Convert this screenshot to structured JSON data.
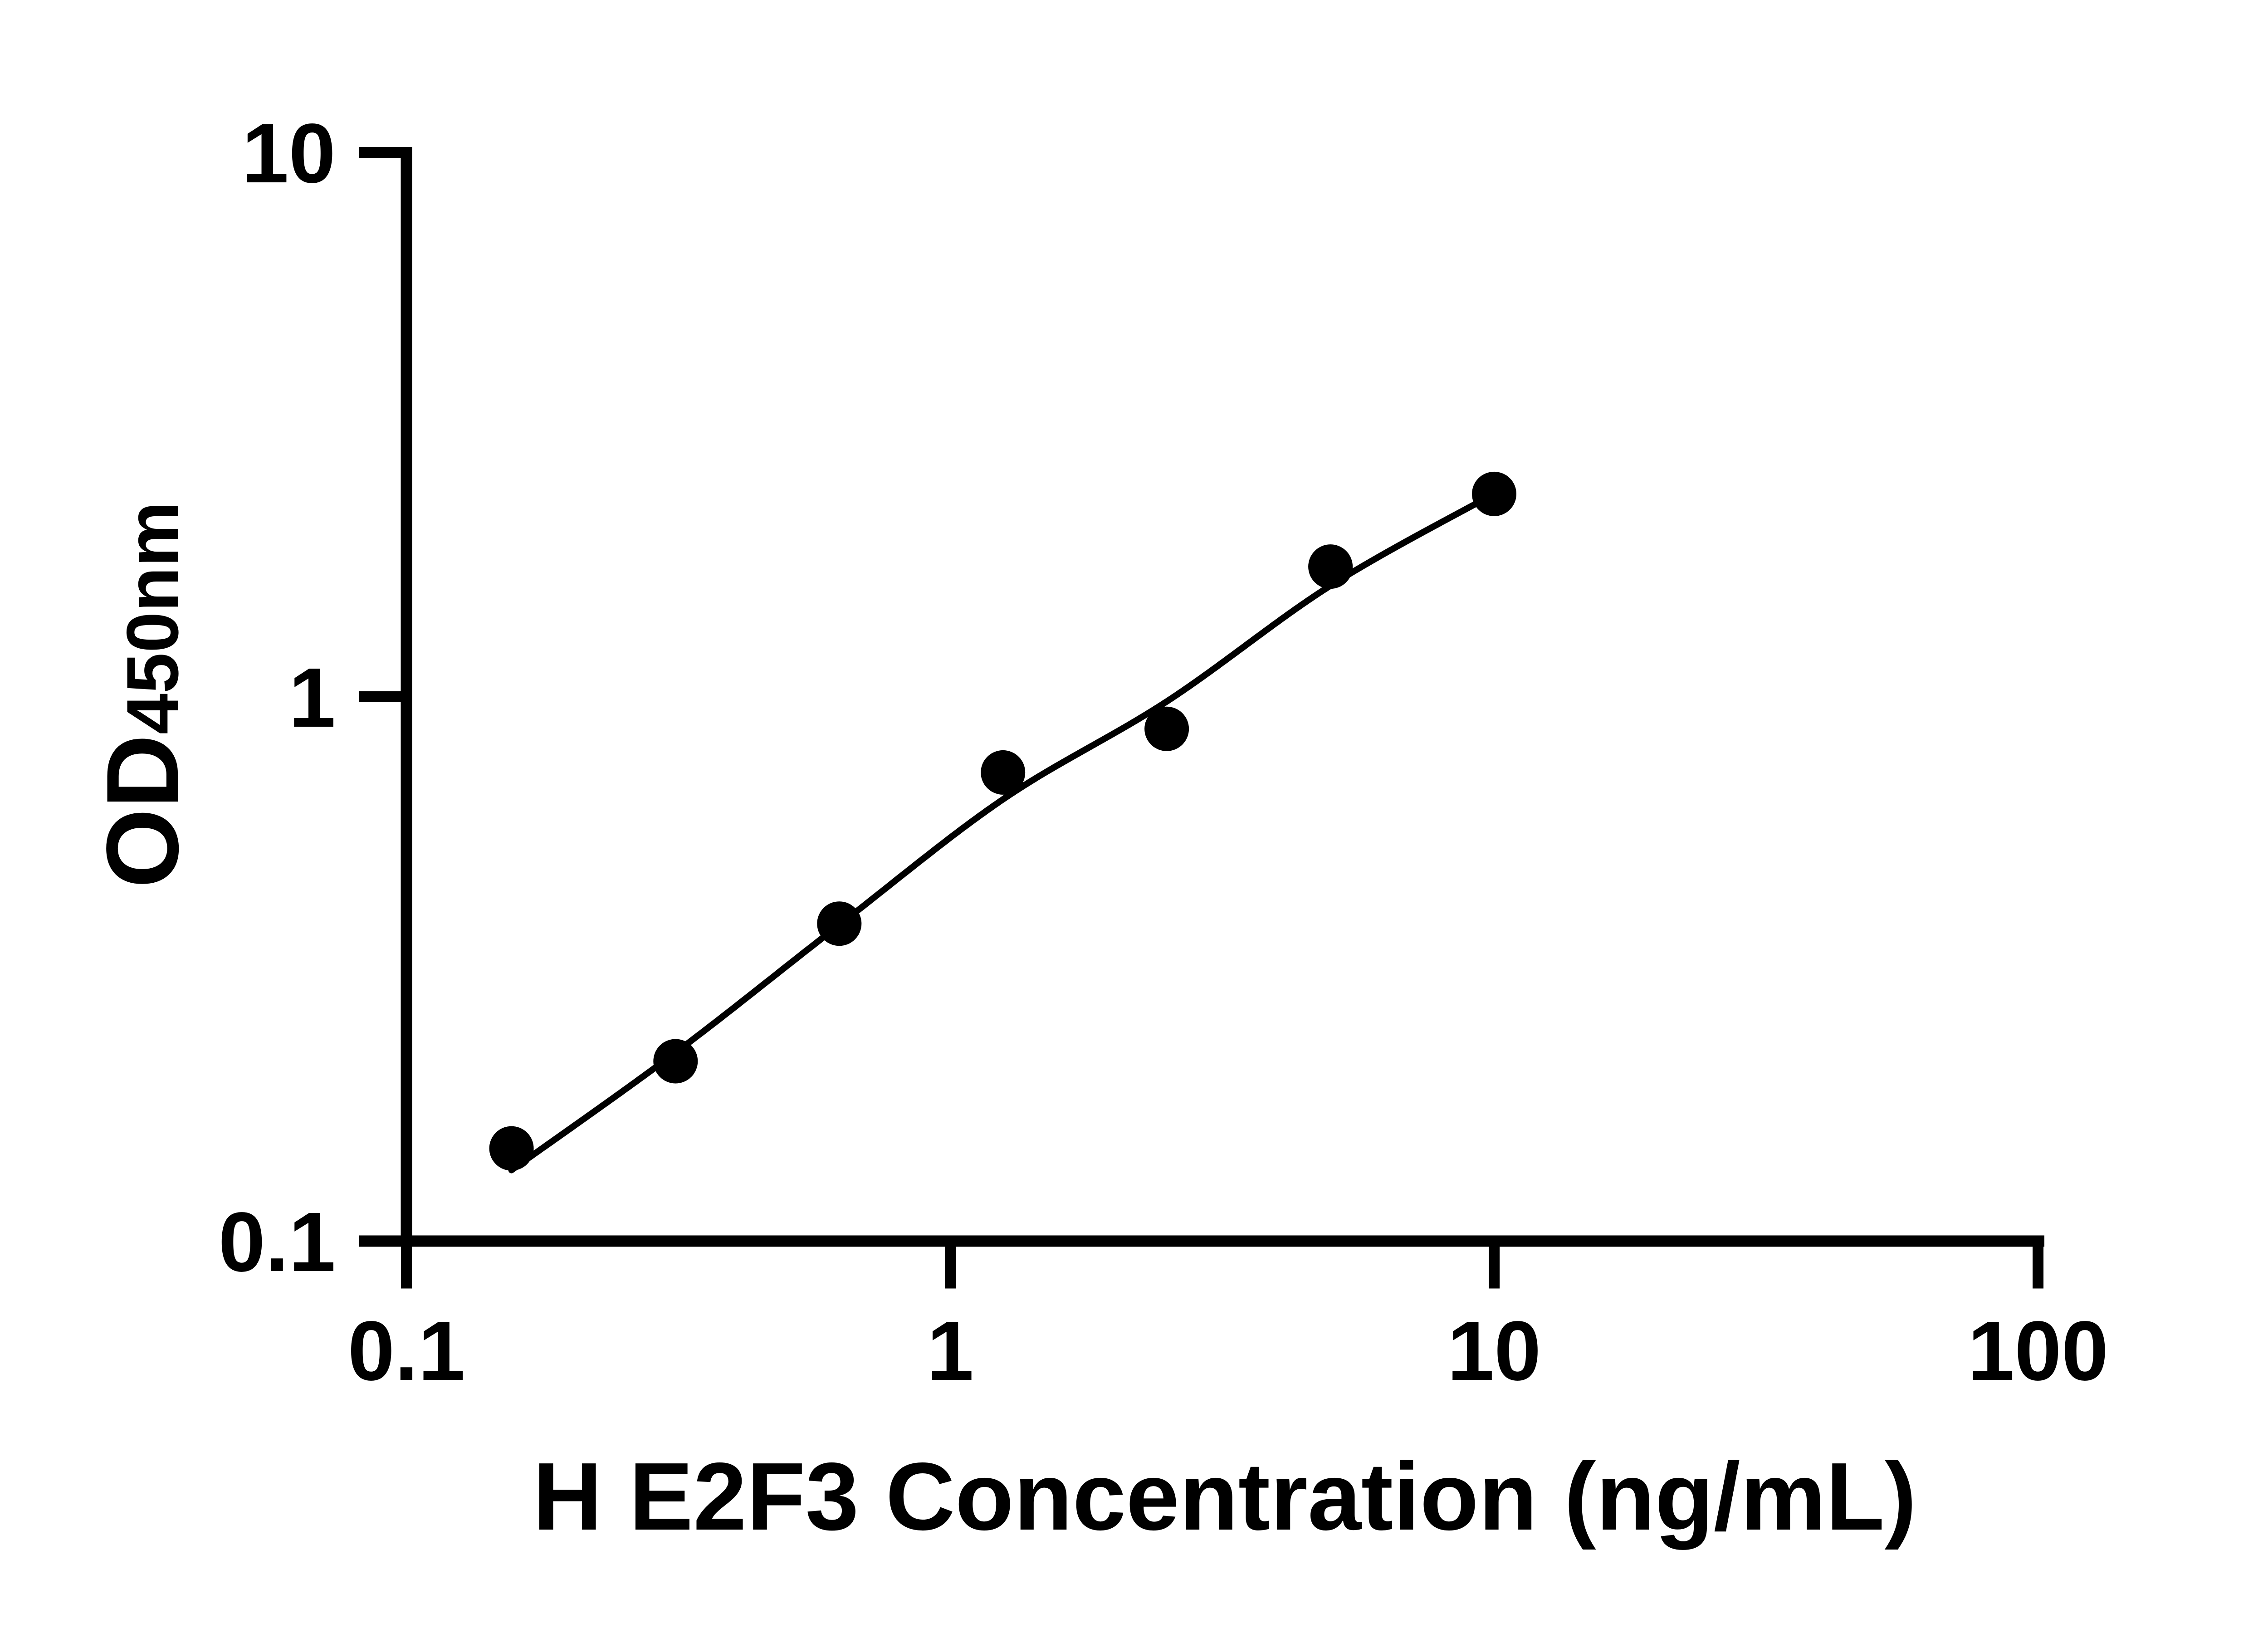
{
  "chart_data": {
    "type": "scatter",
    "title": "",
    "xlabel": "H E2F3 Concentration (ng/mL)",
    "ylabel_main": "OD",
    "ylabel_sub": "450nm",
    "xscale": "log",
    "yscale": "log",
    "xlim": [
      0.1,
      100
    ],
    "ylim": [
      0.1,
      10
    ],
    "xticks": [
      0.1,
      1,
      10,
      100
    ],
    "xtick_labels": [
      "0.1",
      "1",
      "10",
      "100"
    ],
    "yticks": [
      10,
      1,
      0.1
    ],
    "ytick_labels": [
      "10",
      "1",
      "0.1"
    ],
    "grid": false,
    "legend": false,
    "background_color": "#ffffff",
    "axis_color": "#000000",
    "series": [
      {
        "name": "standard-points",
        "marker": "filled-circle",
        "color": "#000000",
        "x": [
          0.156,
          0.3125,
          0.625,
          1.25,
          2.5,
          5,
          10
        ],
        "y": [
          0.148,
          0.214,
          0.383,
          0.726,
          0.873,
          1.734,
          2.358
        ]
      }
    ],
    "fit_curve": {
      "name": "fitted-standard-curve",
      "color": "#000000",
      "x": [
        0.156,
        0.3125,
        0.625,
        1.25,
        2.5,
        5,
        10
      ],
      "y": [
        0.135,
        0.222,
        0.381,
        0.648,
        0.98,
        1.6,
        2.36
      ]
    }
  }
}
